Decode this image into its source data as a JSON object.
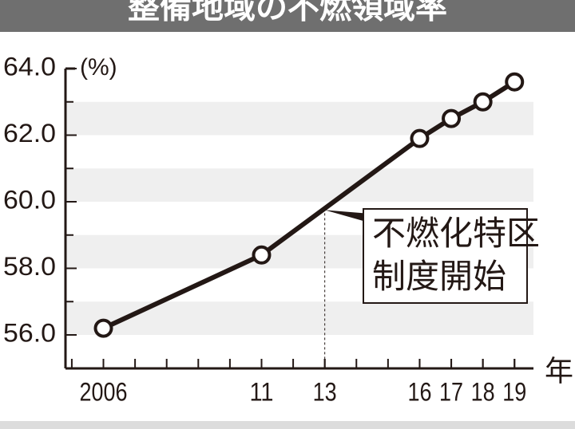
{
  "chart_data": {
    "type": "line",
    "title": "整備地域の不燃領域率",
    "y_label": "(%)",
    "x_label": "年",
    "x": [
      2006,
      2011,
      2016,
      2017,
      2018,
      2019
    ],
    "series": [
      {
        "name": "不燃領域率",
        "color": "#231815",
        "values": [
          56.2,
          58.4,
          61.9,
          62.5,
          63.0,
          63.6
        ]
      }
    ],
    "xlim": [
      2004.8,
      2019.6
    ],
    "xticks": [
      2006,
      {
        "value": 2011,
        "label": "11"
      },
      {
        "value": 2013,
        "label": "13"
      },
      {
        "value": 2016,
        "label": "16"
      },
      {
        "value": 2017,
        "label": "17"
      },
      {
        "value": 2018,
        "label": "18"
      },
      {
        "value": 2019,
        "label": "19"
      }
    ],
    "ylim": [
      56.0,
      64.0
    ],
    "yticks": [
      {
        "value": 56,
        "label": "56.0"
      },
      {
        "value": 58,
        "label": "58.0"
      },
      {
        "value": 60,
        "label": "60.0"
      },
      {
        "value": 62,
        "label": "62.0"
      },
      {
        "value": 64,
        "label": "64.0"
      }
    ],
    "annotation": {
      "lines": [
        "不燃化特区",
        "制度開始"
      ],
      "x": 2013
    }
  }
}
